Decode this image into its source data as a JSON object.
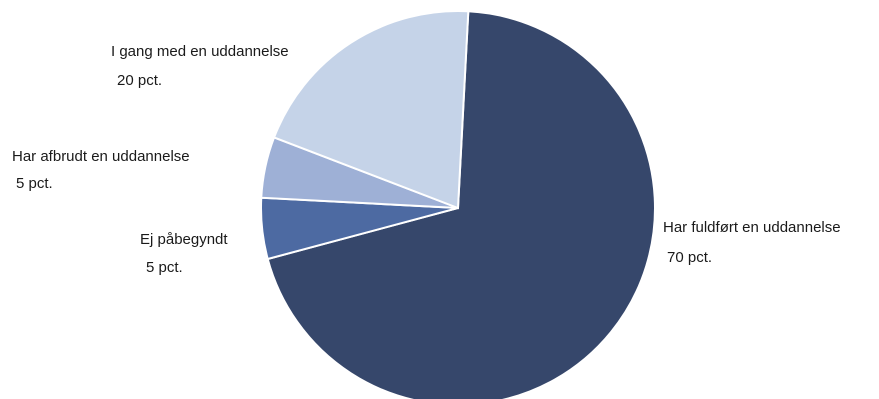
{
  "chart_data": {
    "type": "pie",
    "title": "",
    "start_angle_deg": 3,
    "direction": "clockwise",
    "slices": [
      {
        "label": "Har fuldført en uddannelse",
        "value_text": "70 pct.",
        "value": 70,
        "color": "#36476b"
      },
      {
        "label": "Ej påbegyndt",
        "value_text": "5 pct.",
        "value": 5,
        "color": "#4d6aa2"
      },
      {
        "label": "Har afbrudt en uddannelse",
        "value_text": "5 pct.",
        "value": 5,
        "color": "#9eb0d6"
      },
      {
        "label": "I gang med en uddannelse",
        "value_text": "20 pct.",
        "value": 20,
        "color": "#c5d3e8"
      }
    ]
  }
}
